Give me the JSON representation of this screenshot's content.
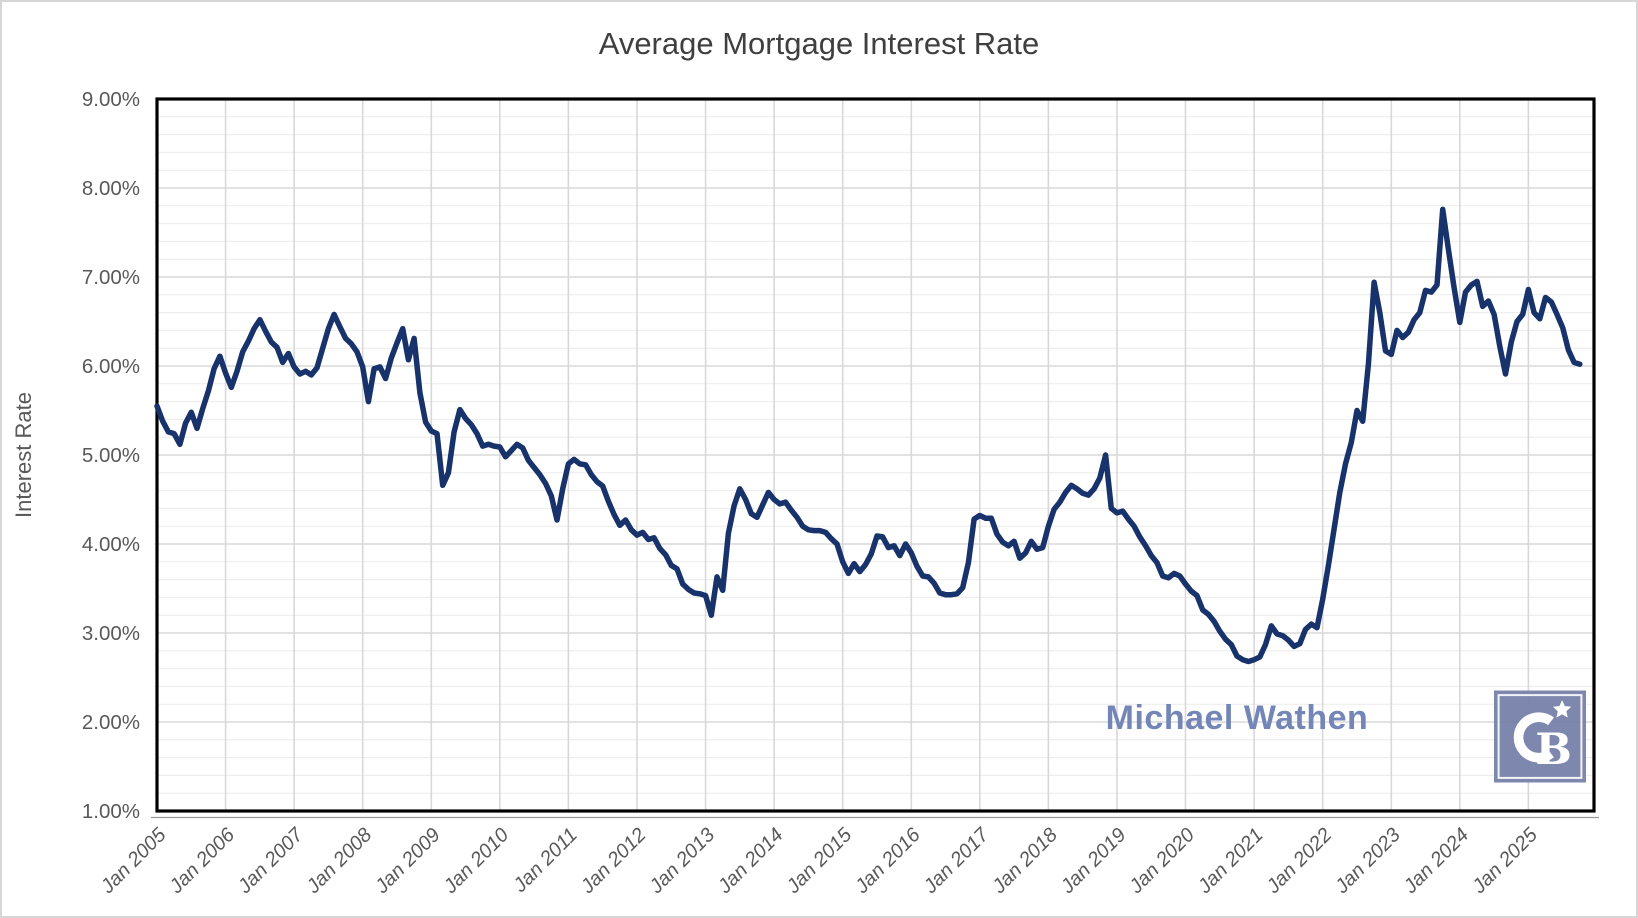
{
  "header": {
    "title": "Average Mortgage Interest Rate"
  },
  "axes": {
    "y_title": "Interest Rate"
  },
  "branding": {
    "watermark": "Michael Wathen",
    "logo_icon": "coldwell-banker-cb-star-logo"
  },
  "chart_data": {
    "type": "line",
    "title": "Average Mortgage Interest Rate",
    "xlabel": "",
    "ylabel": "Interest Rate",
    "ylim": [
      1,
      9
    ],
    "y_major_step": 1,
    "y_minor_step": 0.2,
    "grid": true,
    "legend": false,
    "y_tick_labels": [
      "9.00%",
      "8.00%",
      "7.00%",
      "6.00%",
      "5.00%",
      "4.00%",
      "3.00%",
      "2.00%",
      "1.00%"
    ],
    "x_tick_labels": [
      "Jan 2005",
      "Jan 2006",
      "Jan 2007",
      "Jan 2008",
      "Jan 2009",
      "Jan 2010",
      "Jan 2011",
      "Jan 2012",
      "Jan 2013",
      "Jan 2014",
      "Jan 2015",
      "Jan 2016",
      "Jan 2017",
      "Jan 2018",
      "Jan 2019",
      "Jan 2020",
      "Jan 2021",
      "Jan 2022",
      "Jan 2023",
      "Jan 2024",
      "Jan 2025"
    ],
    "x_start": "Jan 2005",
    "x_end": "Oct 2025",
    "x_interval": "monthly",
    "series": [
      {
        "name": "Average Mortgage Interest Rate (%)",
        "monthly_values": [
          5.55,
          5.38,
          5.26,
          5.24,
          5.12,
          5.36,
          5.48,
          5.3,
          5.52,
          5.72,
          5.97,
          6.11,
          5.92,
          5.76,
          5.94,
          6.16,
          6.28,
          6.42,
          6.52,
          6.39,
          6.27,
          6.21,
          6.04,
          6.14,
          5.99,
          5.91,
          5.94,
          5.9,
          5.98,
          6.2,
          6.42,
          6.58,
          6.44,
          6.31,
          6.25,
          6.16,
          5.99,
          5.6,
          5.97,
          5.99,
          5.86,
          6.09,
          6.26,
          6.42,
          6.07,
          6.31,
          5.7,
          5.37,
          5.27,
          5.24,
          4.66,
          4.8,
          5.26,
          5.51,
          5.41,
          5.34,
          5.24,
          5.1,
          5.12,
          5.1,
          5.09,
          4.98,
          5.05,
          5.12,
          5.08,
          4.94,
          4.86,
          4.78,
          4.68,
          4.54,
          4.27,
          4.62,
          4.9,
          4.95,
          4.9,
          4.89,
          4.78,
          4.7,
          4.65,
          4.48,
          4.33,
          4.21,
          4.27,
          4.16,
          4.1,
          4.13,
          4.05,
          4.07,
          3.95,
          3.88,
          3.76,
          3.72,
          3.55,
          3.49,
          3.45,
          3.44,
          3.42,
          3.2,
          3.63,
          3.48,
          4.12,
          4.43,
          4.62,
          4.5,
          4.34,
          4.3,
          4.44,
          4.58,
          4.5,
          4.45,
          4.47,
          4.38,
          4.3,
          4.2,
          4.16,
          4.15,
          4.15,
          4.13,
          4.06,
          4.0,
          3.8,
          3.67,
          3.78,
          3.69,
          3.77,
          3.89,
          4.09,
          4.08,
          3.96,
          3.98,
          3.87,
          4.0,
          3.9,
          3.75,
          3.64,
          3.63,
          3.56,
          3.45,
          3.43,
          3.43,
          3.44,
          3.51,
          3.79,
          4.28,
          4.32,
          4.29,
          4.29,
          4.11,
          4.02,
          3.98,
          4.03,
          3.84,
          3.9,
          4.03,
          3.94,
          3.96,
          4.2,
          4.39,
          4.47,
          4.58,
          4.66,
          4.62,
          4.57,
          4.55,
          4.62,
          4.74,
          5.0,
          4.4,
          4.35,
          4.37,
          4.28,
          4.2,
          4.08,
          3.98,
          3.87,
          3.79,
          3.64,
          3.62,
          3.67,
          3.64,
          3.55,
          3.47,
          3.42,
          3.26,
          3.21,
          3.13,
          3.02,
          2.93,
          2.87,
          2.74,
          2.7,
          2.68,
          2.7,
          2.73,
          2.87,
          3.08,
          2.99,
          2.97,
          2.92,
          2.85,
          2.88,
          3.04,
          3.1,
          3.06,
          3.38,
          3.76,
          4.17,
          4.58,
          4.9,
          5.14,
          5.5,
          5.38,
          6.02,
          6.94,
          6.6,
          6.17,
          6.13,
          6.4,
          6.32,
          6.38,
          6.52,
          6.6,
          6.85,
          6.83,
          6.91,
          7.76,
          7.31,
          6.88,
          6.49,
          6.83,
          6.91,
          6.95,
          6.67,
          6.73,
          6.58,
          6.22,
          5.91,
          6.27,
          6.5,
          6.58,
          6.86,
          6.6,
          6.53,
          6.77,
          6.72,
          6.58,
          6.43,
          6.18,
          6.04,
          6.02
        ]
      }
    ],
    "colors": {
      "line": "#18336B",
      "major_grid": "#d8d8d8",
      "minor_grid": "#ececec",
      "plot_border": "#000000",
      "axis_text": "#595959",
      "title_text": "#3f3f3f",
      "watermark": "#7486B8",
      "logo_bg": "#747EA8",
      "logo_glyph": "#ffffff"
    }
  }
}
